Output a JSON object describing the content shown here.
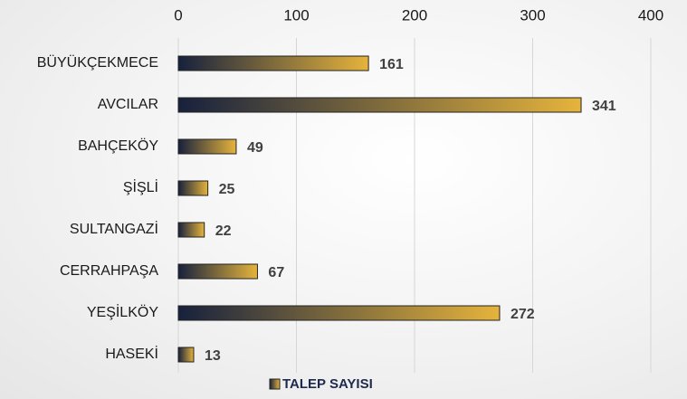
{
  "chart_data": {
    "type": "bar",
    "orientation": "horizontal",
    "categories": [
      "BÜYÜKÇEKMECE",
      "AVCILAR",
      "BAHÇEKÖY",
      "ŞİŞLİ",
      "SULTANGAZİ",
      "CERRAHPAŞA",
      "YEŞİLKÖY",
      "HASEKİ"
    ],
    "series": [
      {
        "name": "TALEP SAYISI",
        "gradient": [
          "#17213d",
          "#e6b43c"
        ],
        "values": [
          161,
          341,
          49,
          25,
          22,
          67,
          272,
          13
        ]
      }
    ],
    "xlim": [
      0,
      400
    ],
    "xticks": [
      0,
      100,
      200,
      300,
      400
    ],
    "grid": true,
    "legend": "bottom"
  }
}
